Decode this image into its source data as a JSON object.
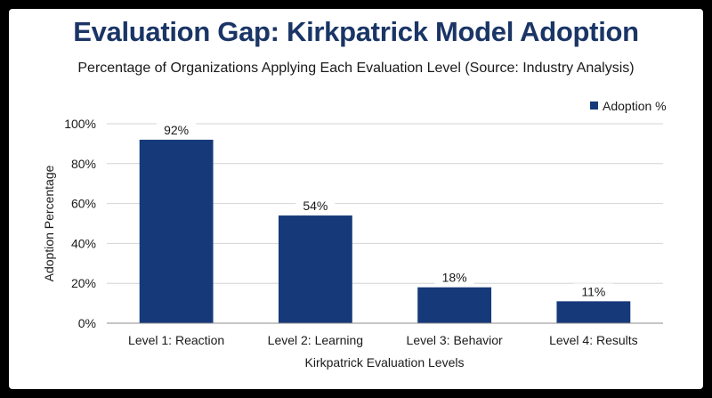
{
  "chart_data": {
    "type": "bar",
    "title": "Evaluation Gap: Kirkpatrick Model Adoption",
    "subtitle": "Percentage of Organizations Applying Each Evaluation Level (Source: Industry Analysis)",
    "xlabel": "Kirkpatrick Evaluation Levels",
    "ylabel": "Adoption Percentage",
    "categories": [
      "Level 1: Reaction",
      "Level 2: Learning",
      "Level 3: Behavior",
      "Level 4: Results"
    ],
    "series": [
      {
        "name": "Adoption %",
        "values": [
          92,
          54,
          18,
          11
        ],
        "color": "#16397a"
      }
    ],
    "data_labels": [
      "92%",
      "54%",
      "18%",
      "11%"
    ],
    "ylim": [
      0,
      100
    ],
    "yticks": [
      0,
      20,
      40,
      60,
      80,
      100
    ],
    "ytick_labels": [
      "0%",
      "20%",
      "40%",
      "60%",
      "80%",
      "100%"
    ],
    "grid": true,
    "legend_position": "top-right"
  }
}
